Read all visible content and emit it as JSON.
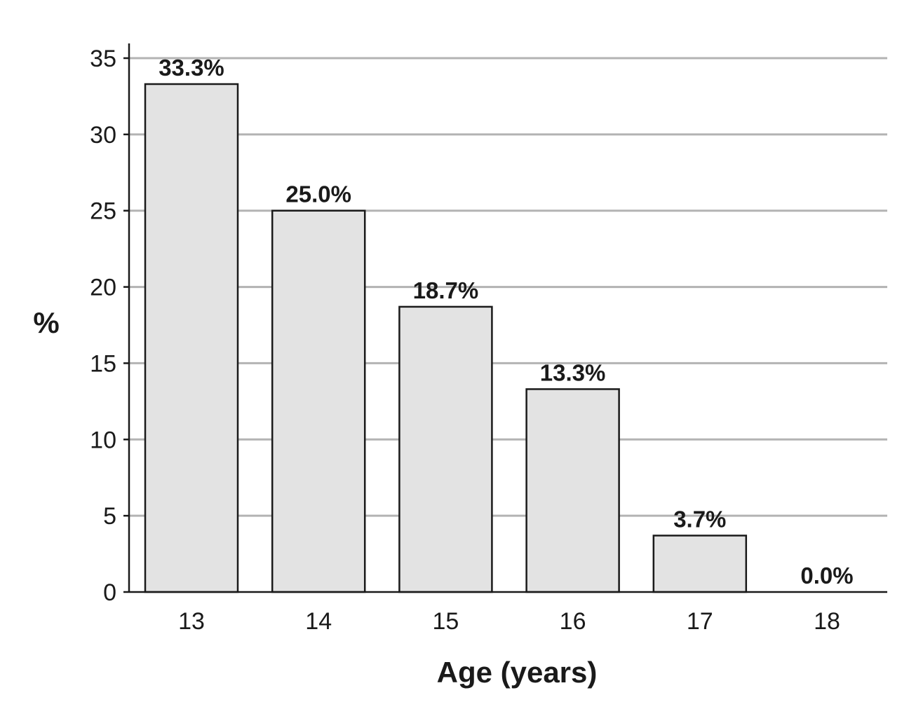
{
  "chart_data": {
    "type": "bar",
    "categories": [
      "13",
      "14",
      "15",
      "16",
      "17",
      "18"
    ],
    "values": [
      33.3,
      25.0,
      18.7,
      13.3,
      3.7,
      0.0
    ],
    "data_labels": [
      "33.3%",
      "25.0%",
      "18.7%",
      "13.3%",
      "3.7%",
      "0.0%"
    ],
    "title": "",
    "xlabel": "Age (years)",
    "ylabel": "%",
    "ylim": [
      0,
      35
    ],
    "yticks": [
      0,
      5,
      10,
      15,
      20,
      25,
      30,
      35
    ],
    "grid": true,
    "bar_color": "#e3e3e3",
    "edge_color": "#1a1a1a",
    "grid_color": "#b3b3b3"
  }
}
